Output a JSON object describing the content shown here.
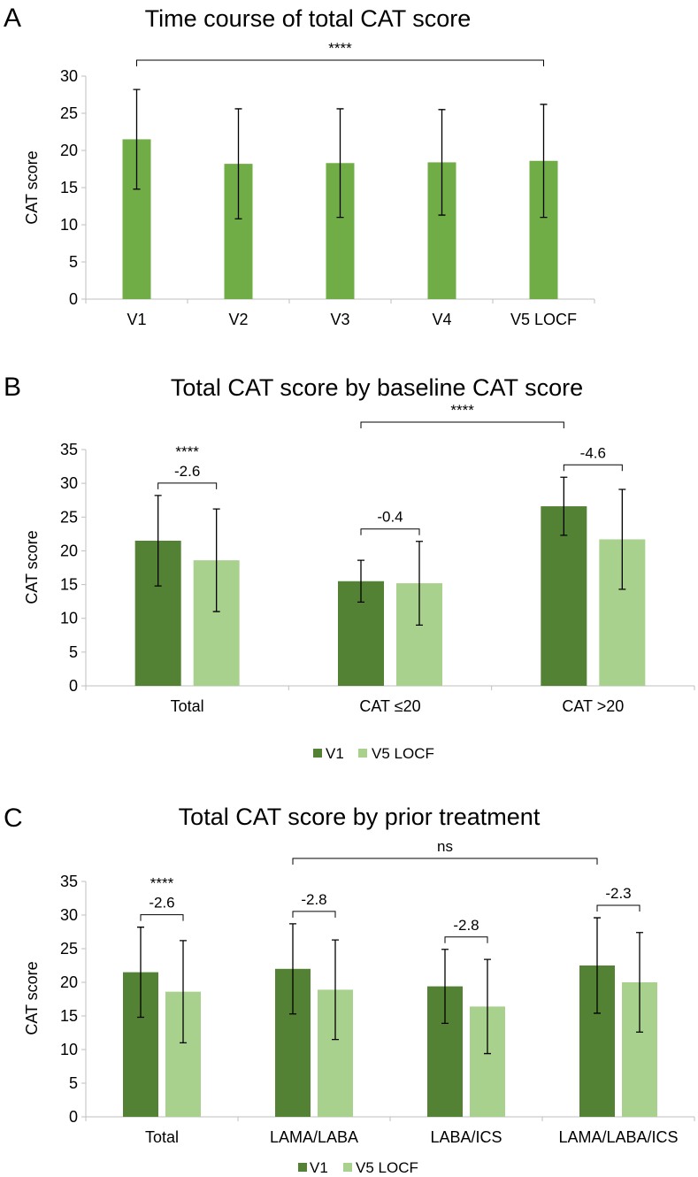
{
  "colors": {
    "single": "#70AD47",
    "dark": "#548235",
    "light": "#A9D18E",
    "axis": "#bfbfbf",
    "text": "#000000"
  },
  "chart_data": [
    {
      "type": "bar",
      "panel_letter": "A",
      "title": "Time course of total CAT score",
      "xlabel": "",
      "ylabel": "CAT score",
      "ylim": [
        0,
        30
      ],
      "yticks": [
        0,
        5,
        10,
        15,
        20,
        25,
        30
      ],
      "categories": [
        "V1",
        "V2",
        "V3",
        "V4",
        "V5 LOCF"
      ],
      "series": [
        {
          "name": "CAT score",
          "values": [
            21.5,
            18.2,
            18.3,
            18.4,
            18.6
          ],
          "errors": [
            6.7,
            7.4,
            7.3,
            7.1,
            7.6
          ]
        }
      ],
      "legend": [],
      "annotations": [
        {
          "text": "****",
          "kind": "span",
          "from_category": 0,
          "to_category": 4
        }
      ]
    },
    {
      "type": "bar",
      "panel_letter": "B",
      "title": "Total CAT score by baseline CAT score",
      "xlabel": "",
      "ylabel": "CAT score",
      "ylim": [
        0,
        35
      ],
      "yticks": [
        0,
        5,
        10,
        15,
        20,
        25,
        30,
        35
      ],
      "categories": [
        "Total",
        "CAT ≤20",
        "CAT >20"
      ],
      "series": [
        {
          "name": "V1",
          "values": [
            21.5,
            15.5,
            26.6
          ],
          "errors": [
            6.7,
            3.1,
            4.3
          ]
        },
        {
          "name": "V5 LOCF",
          "values": [
            18.6,
            15.2,
            21.7
          ],
          "errors": [
            7.6,
            6.2,
            7.4
          ]
        }
      ],
      "legend": [
        "V1",
        "V5 LOCF"
      ],
      "annotations": [
        {
          "text": "-2.6",
          "sig": "****",
          "kind": "pair",
          "category": 0
        },
        {
          "text": "-0.4",
          "sig": "",
          "kind": "pair",
          "category": 1
        },
        {
          "text": "-4.6",
          "sig": "",
          "kind": "pair",
          "category": 2
        },
        {
          "text": "****",
          "kind": "span",
          "from_category": 1,
          "to_category": 2
        }
      ]
    },
    {
      "type": "bar",
      "panel_letter": "C",
      "title": "Total CAT score by prior treatment",
      "xlabel": "",
      "ylabel": "CAT score",
      "ylim": [
        0,
        35
      ],
      "yticks": [
        0,
        5,
        10,
        15,
        20,
        25,
        30,
        35
      ],
      "categories": [
        "Total",
        "LAMA/LABA",
        "LABA/ICS",
        "LAMA/LABA/ICS"
      ],
      "series": [
        {
          "name": "V1",
          "values": [
            21.5,
            22.0,
            19.4,
            22.5
          ],
          "errors": [
            6.7,
            6.7,
            5.5,
            7.1
          ]
        },
        {
          "name": "V5 LOCF",
          "values": [
            18.6,
            18.9,
            16.4,
            20.0
          ],
          "errors": [
            7.6,
            7.4,
            7.0,
            7.4
          ]
        }
      ],
      "legend": [
        "V1",
        "V5 LOCF"
      ],
      "annotations": [
        {
          "text": "-2.6",
          "sig": "****",
          "kind": "pair",
          "category": 0
        },
        {
          "text": "-2.8",
          "sig": "",
          "kind": "pair",
          "category": 1
        },
        {
          "text": "-2.8",
          "sig": "",
          "kind": "pair",
          "category": 2
        },
        {
          "text": "-2.3",
          "sig": "",
          "kind": "pair",
          "category": 3
        },
        {
          "text": "ns",
          "kind": "span",
          "from_category": 1,
          "to_category": 3
        }
      ]
    }
  ]
}
